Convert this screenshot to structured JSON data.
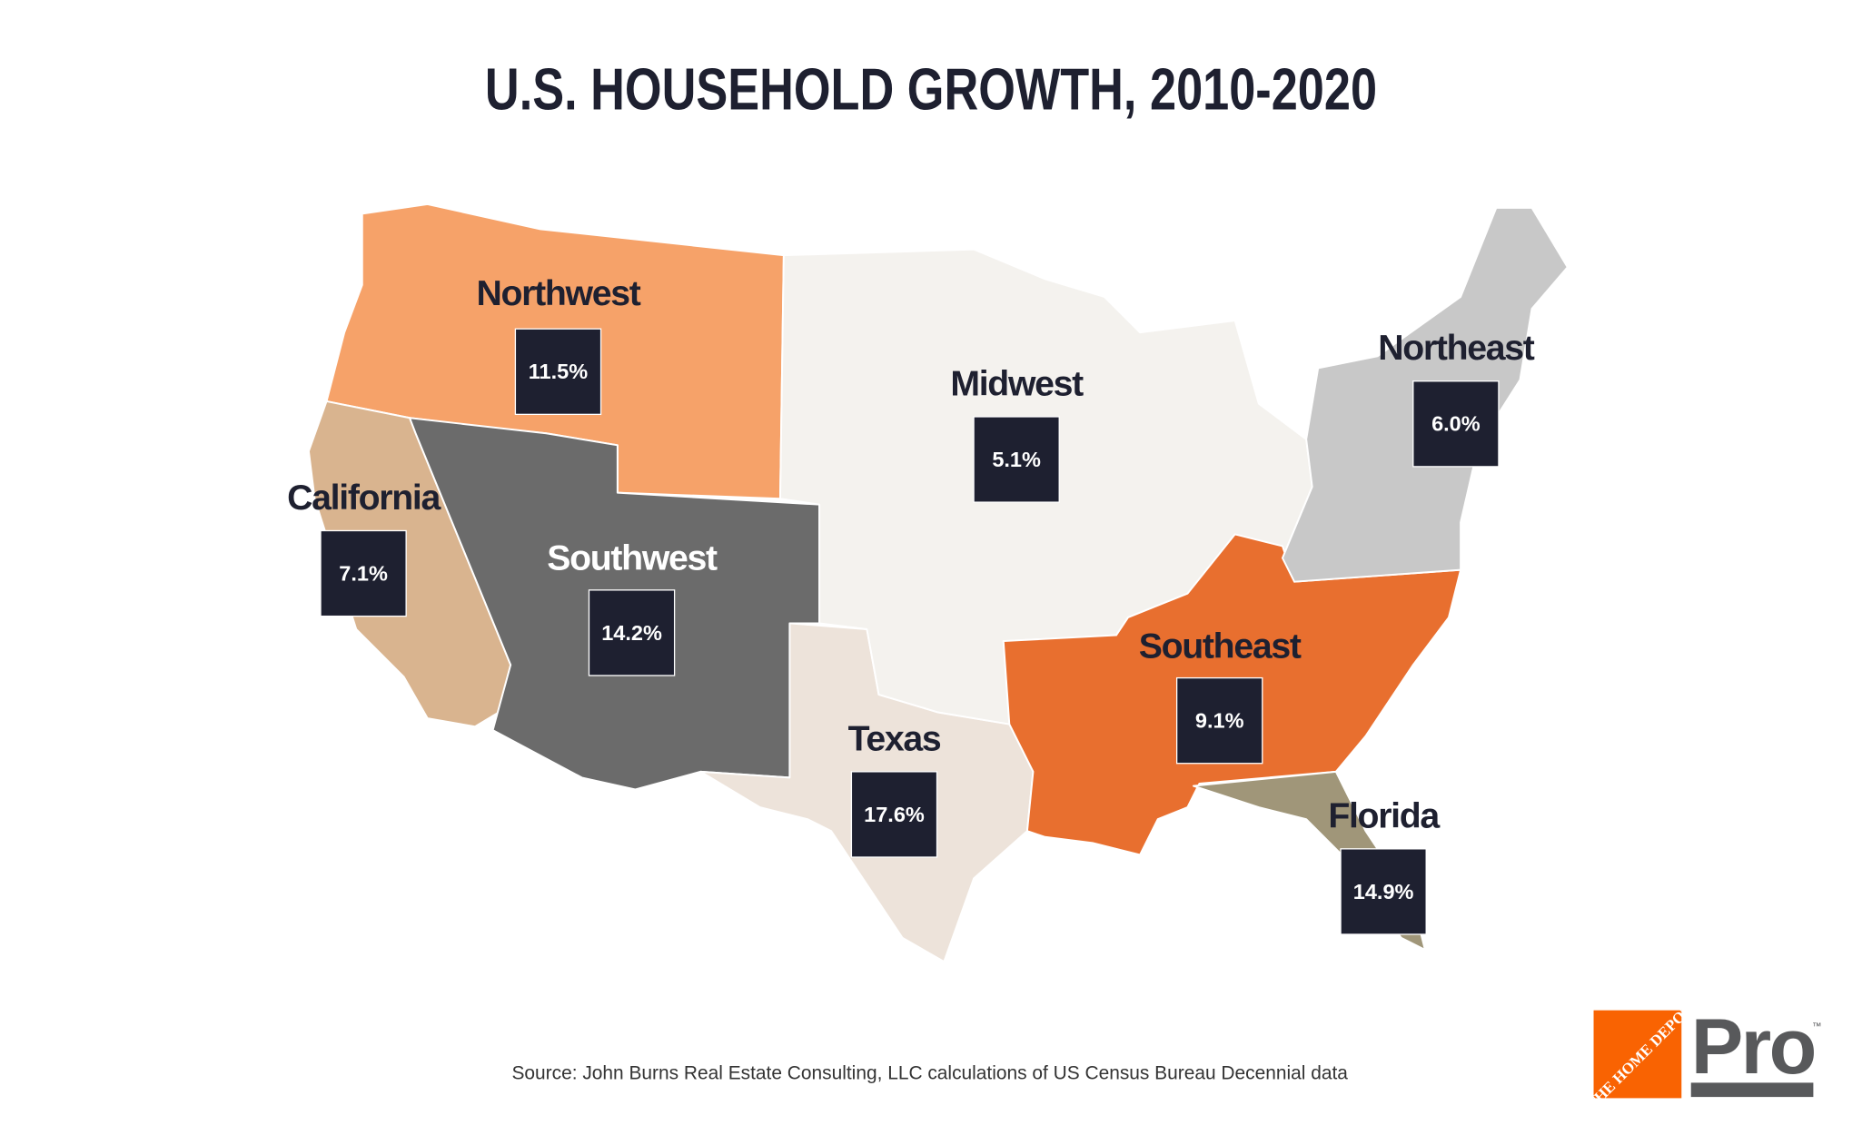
{
  "title": "U.S. HOUSEHOLD GROWTH, 2010-2020",
  "source": "Source: John Burns Real Estate Consulting, LLC calculations of US Census Bureau Decennial data",
  "logo": {
    "brand": "THE HOME DEPOT",
    "suffix": "Pro",
    "tm": "™",
    "orange": "#F96302",
    "gray": "#58595B"
  },
  "chart_data": {
    "type": "map",
    "title": "U.S. HOUSEHOLD GROWTH, 2010-2020",
    "regions": [
      {
        "name": "Northwest",
        "value": 11.5,
        "value_label": "11.5%",
        "color": "#F6A269"
      },
      {
        "name": "California",
        "value": 7.1,
        "value_label": "7.1%",
        "color": "#D9B48F"
      },
      {
        "name": "Southwest",
        "value": 14.2,
        "value_label": "14.2%",
        "color": "#6B6B6B"
      },
      {
        "name": "Texas",
        "value": 17.6,
        "value_label": "17.6%",
        "color": "#EDE3DA"
      },
      {
        "name": "Midwest",
        "value": 5.1,
        "value_label": "5.1%",
        "color": "#F4F2EE"
      },
      {
        "name": "Southeast",
        "value": 9.1,
        "value_label": "9.1%",
        "color": "#E86F2F"
      },
      {
        "name": "Florida",
        "value": 14.9,
        "value_label": "14.9%",
        "color": "#A09679"
      },
      {
        "name": "Northeast",
        "value": 6.0,
        "value_label": "6.0%",
        "color": "#C8C8C8"
      }
    ],
    "label_box_color": "#1E2030"
  }
}
